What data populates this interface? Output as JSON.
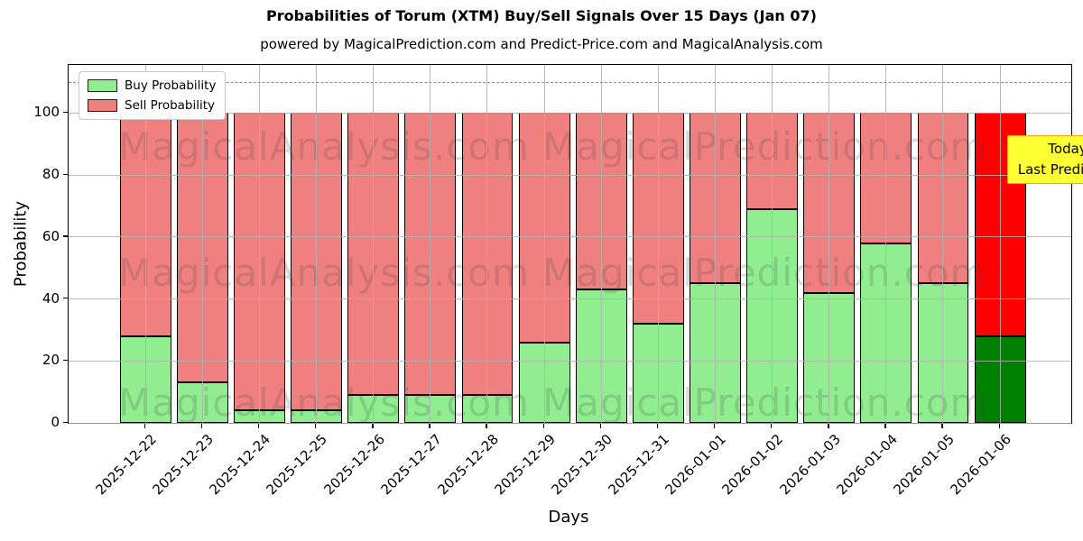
{
  "title": "Probabilities of Torum (XTM) Buy/Sell Signals Over 15 Days (Jan 07)",
  "subtitle": "powered by MagicalPrediction.com and Predict-Price.com and MagicalAnalysis.com",
  "watermarks": {
    "left_text": "MagicalAnalysis.com",
    "right_text": "MagicalPrediction.com"
  },
  "annotation_box": {
    "line1": "Today",
    "line2": "Last Prediction",
    "bg_color": "#ffff33",
    "border_color": "#ffa500"
  },
  "legend": {
    "items": [
      {
        "label": "Buy Probability",
        "color": "#90ee90"
      },
      {
        "label": "Sell Probability",
        "color": "#f08080"
      }
    ]
  },
  "axes": {
    "ylabel": "Probability",
    "xlabel": "Days",
    "yticks": [
      0,
      20,
      40,
      60,
      80,
      100
    ],
    "ylim": [
      0,
      115.5
    ],
    "dashed_guide_y": 110,
    "grid": true
  },
  "chart_data": {
    "type": "bar",
    "stacked": true,
    "title": "Probabilities of Torum (XTM) Buy/Sell Signals Over 15 Days (Jan 07)",
    "xlabel": "Days",
    "ylabel": "Probability",
    "ylim": [
      0,
      115.5
    ],
    "categories": [
      "2025-12-22",
      "2025-12-23",
      "2025-12-24",
      "2025-12-25",
      "2025-12-26",
      "2025-12-27",
      "2025-12-28",
      "2025-12-29",
      "2025-12-30",
      "2025-12-31",
      "2026-01-01",
      "2026-01-02",
      "2026-01-03",
      "2026-01-04",
      "2026-01-05",
      "2026-01-06"
    ],
    "series": [
      {
        "name": "Buy Probability",
        "color": "#90ee90",
        "values": [
          28,
          13,
          4,
          4,
          9,
          9,
          9,
          26,
          43,
          32,
          45,
          69,
          42,
          58,
          45,
          28
        ]
      },
      {
        "name": "Sell Probability",
        "color": "#f08080",
        "values": [
          72,
          87,
          96,
          96,
          91,
          91,
          91,
          74,
          57,
          68,
          55,
          31,
          58,
          42,
          55,
          72
        ]
      }
    ],
    "today_bar": {
      "category": "2026-01-06",
      "buy_color": "#008000",
      "sell_color": "#ff0000"
    },
    "bar_edge_color": "#000000",
    "legend_position": "upper left"
  }
}
